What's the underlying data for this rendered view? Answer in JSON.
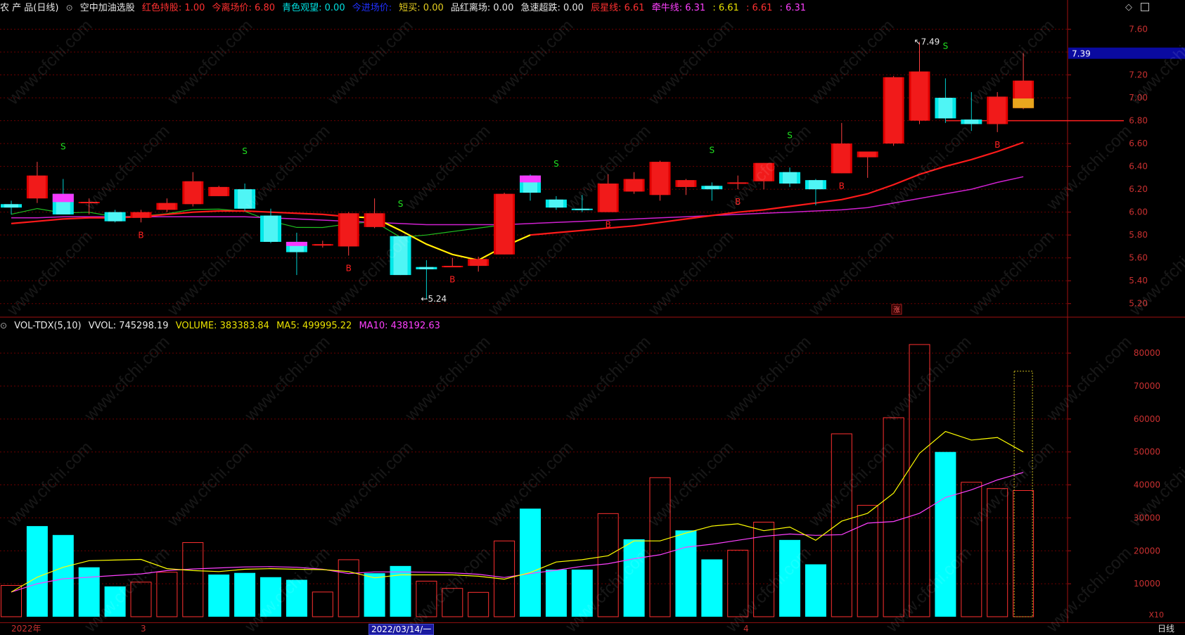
{
  "header": {
    "stock_name": "农 产 品(日线)",
    "formula": "空中加油选股",
    "items": [
      {
        "text": "红色持股: 1.00",
        "color": "#ff3030"
      },
      {
        "text": "今离场价: 6.80",
        "color": "#ff3030"
      },
      {
        "text": "青色观望: 0.00",
        "color": "#00e0e0"
      },
      {
        "text": "今进场价:",
        "color": "#2030ff"
      },
      {
        "text": "短买: 0.00",
        "color": "#e8d020"
      },
      {
        "text": "品红离场: 0.00",
        "color": "#e8e8e8"
      },
      {
        "text": "急速超跌: 0.00",
        "color": "#e8e8e8"
      },
      {
        "text": "辰星线: 6.61",
        "color": "#ff3030"
      },
      {
        "text": "牵牛线: 6.31",
        "color": "#ff40ff"
      },
      {
        "text": ": 6.61",
        "color": "#e8e000"
      },
      {
        "text": ": 6.61",
        "color": "#ff3030"
      },
      {
        "text": ": 6.31",
        "color": "#ff40ff"
      }
    ],
    "toggle_icon": "circle-chevron-icon",
    "diamond_icon": "diamond-icon",
    "window_icon": "window-restore-icon"
  },
  "volume_header": {
    "name": "VOL-TDX(5,10)",
    "vvol": "VVOL: 745298.19",
    "volume": "VOLUME: 383383.84",
    "ma5": "MA5: 499995.22",
    "ma10": "MA10: 438192.63",
    "colors": {
      "name": "#e8e8e8",
      "volume": "#e8e000",
      "ma5": "#e8e000",
      "ma10": "#ff40ff"
    }
  },
  "price_axis": {
    "ticks": [
      "7.60",
      "7.40",
      "7.20",
      "7.00",
      "6.80",
      "6.60",
      "6.40",
      "6.20",
      "6.00",
      "5.80",
      "5.60",
      "5.40",
      "5.20"
    ],
    "current_price": "7.39",
    "high_marker": "7.49",
    "low_marker": "5.24",
    "rise_badge": "涨"
  },
  "volume_axis": {
    "ticks": [
      "80000",
      "70000",
      "60000",
      "50000",
      "40000",
      "30000",
      "20000",
      "10000"
    ],
    "unit": "X10"
  },
  "time_axis": {
    "labels": [
      "2022年",
      "3",
      "4"
    ],
    "cursor_date": "2022/03/14/一",
    "period": "日线"
  },
  "signals": {
    "buy": "B",
    "sell": "S"
  },
  "watermark": "www.cfchi.com",
  "colors": {
    "up": "#e00000",
    "down": "#00e8e8",
    "ma_red": "#ff1a1a",
    "ma_magenta": "#d020d0",
    "ma_green": "#20c020",
    "ma_yellow": "#ffff00",
    "grid": "#6a0000",
    "border": "#a01010",
    "sell_signal": "#20e020",
    "buy_signal": "#ff2020"
  },
  "chart_data": {
    "type": "candlestick",
    "candles": [
      {
        "o": 6.07,
        "h": 6.1,
        "l": 5.98,
        "c": 6.04
      },
      {
        "o": 6.12,
        "h": 6.44,
        "l": 6.08,
        "c": 6.32
      },
      {
        "o": 6.16,
        "h": 6.29,
        "l": 5.98,
        "c": 5.98
      },
      {
        "o": 6.09,
        "h": 6.12,
        "l": 5.98,
        "c": 6.09
      },
      {
        "o": 6.0,
        "h": 6.02,
        "l": 5.91,
        "c": 5.92
      },
      {
        "o": 5.95,
        "h": 6.02,
        "l": 5.91,
        "c": 6.0
      },
      {
        "o": 6.02,
        "h": 6.12,
        "l": 6.0,
        "c": 6.08
      },
      {
        "o": 6.07,
        "h": 6.35,
        "l": 6.05,
        "c": 6.27
      },
      {
        "o": 6.14,
        "h": 6.23,
        "l": 6.14,
        "c": 6.22
      },
      {
        "o": 6.2,
        "h": 6.25,
        "l": 6.01,
        "c": 6.03
      },
      {
        "o": 5.97,
        "h": 6.03,
        "l": 5.73,
        "c": 5.74
      },
      {
        "o": 5.74,
        "h": 5.82,
        "l": 5.45,
        "c": 5.65
      },
      {
        "o": 5.71,
        "h": 5.75,
        "l": 5.69,
        "c": 5.72
      },
      {
        "o": 5.7,
        "h": 6.0,
        "l": 5.62,
        "c": 5.99
      },
      {
        "o": 5.87,
        "h": 6.12,
        "l": 5.86,
        "c": 5.99
      },
      {
        "o": 5.79,
        "h": 5.79,
        "l": 5.45,
        "c": 5.45
      },
      {
        "o": 5.52,
        "h": 5.58,
        "l": 5.24,
        "c": 5.5
      },
      {
        "o": 5.53,
        "h": 5.6,
        "l": 5.52,
        "c": 5.53
      },
      {
        "o": 5.53,
        "h": 5.61,
        "l": 5.48,
        "c": 5.59
      },
      {
        "o": 5.63,
        "h": 6.17,
        "l": 5.63,
        "c": 6.16
      },
      {
        "o": 6.32,
        "h": 6.33,
        "l": 6.1,
        "c": 6.17
      },
      {
        "o": 6.11,
        "h": 6.14,
        "l": 6.02,
        "c": 6.04
      },
      {
        "o": 6.03,
        "h": 6.15,
        "l": 6.0,
        "c": 6.02
      },
      {
        "o": 6.0,
        "h": 6.33,
        "l": 6.0,
        "c": 6.25
      },
      {
        "o": 6.18,
        "h": 6.35,
        "l": 6.16,
        "c": 6.29
      },
      {
        "o": 6.15,
        "h": 6.45,
        "l": 6.1,
        "c": 6.44
      },
      {
        "o": 6.22,
        "h": 6.29,
        "l": 6.15,
        "c": 6.28
      },
      {
        "o": 6.23,
        "h": 6.26,
        "l": 6.1,
        "c": 6.2
      },
      {
        "o": 6.26,
        "h": 6.32,
        "l": 6.2,
        "c": 6.26
      },
      {
        "o": 6.27,
        "h": 6.43,
        "l": 6.2,
        "c": 6.43
      },
      {
        "o": 6.35,
        "h": 6.39,
        "l": 6.22,
        "c": 6.25
      },
      {
        "o": 6.28,
        "h": 6.29,
        "l": 6.06,
        "c": 6.2
      },
      {
        "o": 6.34,
        "h": 6.78,
        "l": 6.34,
        "c": 6.6
      },
      {
        "o": 6.48,
        "h": 6.53,
        "l": 6.3,
        "c": 6.53
      },
      {
        "o": 6.6,
        "h": 7.19,
        "l": 6.58,
        "c": 7.18
      },
      {
        "o": 6.8,
        "h": 7.49,
        "l": 6.77,
        "c": 7.23
      },
      {
        "o": 7.0,
        "h": 7.17,
        "l": 6.78,
        "c": 6.82
      },
      {
        "o": 6.81,
        "h": 7.05,
        "l": 6.71,
        "c": 6.77
      },
      {
        "o": 6.77,
        "h": 7.05,
        "l": 6.7,
        "c": 7.01
      },
      {
        "o": 6.91,
        "h": 7.39,
        "l": 6.9,
        "c": 7.15
      }
    ],
    "ma_red": [
      5.9,
      5.92,
      5.94,
      5.95,
      5.95,
      5.96,
      5.98,
      6.0,
      6.01,
      6.01,
      6.0,
      5.99,
      5.98,
      5.96,
      5.95,
      5.84,
      5.72,
      5.63,
      5.58,
      5.7,
      5.8,
      5.82,
      5.84,
      5.86,
      5.88,
      5.91,
      5.94,
      5.97,
      6.0,
      6.02,
      6.05,
      6.08,
      6.11,
      6.16,
      6.24,
      6.33,
      6.4,
      6.46,
      6.53,
      6.61
    ],
    "ma_magenta": [
      5.95,
      5.95,
      5.96,
      5.96,
      5.96,
      5.96,
      5.96,
      5.96,
      5.96,
      5.96,
      5.95,
      5.94,
      5.93,
      5.92,
      5.91,
      5.9,
      5.89,
      5.89,
      5.89,
      5.89,
      5.9,
      5.91,
      5.92,
      5.93,
      5.94,
      5.95,
      5.96,
      5.97,
      5.98,
      5.99,
      6.0,
      6.01,
      6.02,
      6.04,
      6.08,
      6.12,
      6.16,
      6.2,
      6.26,
      6.31
    ],
    "sell_signals": [
      2,
      9,
      15,
      21,
      27,
      30,
      36
    ],
    "buy_signals": [
      5,
      13,
      17,
      23,
      28,
      32,
      38
    ],
    "volume": [
      9.5,
      27.5,
      24.8,
      15.0,
      9.2,
      10.5,
      13.5,
      22.5,
      12.8,
      13.3,
      12.0,
      11.2,
      7.5,
      17.3,
      13.2,
      15.4,
      10.8,
      8.6,
      7.4,
      23.0,
      32.8,
      14.3,
      14.3,
      31.3,
      23.5,
      42.2,
      26.2,
      17.4,
      20.2,
      28.7,
      23.3,
      15.9,
      55.5,
      33.8,
      60.4,
      82.6,
      50.0,
      40.8,
      38.9,
      38.3
    ],
    "vol_up": [
      true,
      false,
      false,
      false,
      false,
      true,
      true,
      true,
      false,
      false,
      false,
      false,
      true,
      true,
      false,
      false,
      true,
      true,
      true,
      true,
      false,
      false,
      false,
      true,
      false,
      true,
      false,
      false,
      true,
      true,
      false,
      false,
      true,
      true,
      true,
      true,
      false,
      true,
      true,
      true
    ],
    "vol_ma5": [
      7.5,
      12.0,
      15.0,
      17.0,
      17.2,
      17.4,
      14.6,
      14.0,
      13.7,
      14.4,
      14.6,
      14.4,
      14.3,
      13.7,
      11.8,
      12.7,
      12.7,
      12.7,
      12.3,
      11.4,
      13.4,
      16.6,
      17.3,
      18.5,
      23.0,
      23.0,
      25.4,
      27.5,
      28.2,
      26.1,
      27.2,
      23.2,
      29.0,
      31.4,
      37.5,
      49.6,
      56.2,
      53.6,
      54.4,
      50.0
    ],
    "vol_ma10": [
      7.5,
      10.0,
      11.5,
      12.0,
      12.5,
      13.0,
      14.0,
      14.5,
      14.8,
      15.1,
      15.2,
      15.0,
      14.4,
      13.1,
      13.6,
      13.6,
      13.5,
      13.3,
      12.9,
      11.9,
      13.1,
      14.1,
      15.3,
      16.1,
      17.6,
      18.8,
      21.1,
      22.0,
      23.2,
      24.4,
      25.1,
      24.7,
      24.9,
      28.4,
      28.9,
      31.4,
      36.2,
      38.5,
      41.5,
      43.8
    ],
    "price_range": [
      5.1,
      7.72
    ],
    "volume_range_x10k": [
      0,
      86
    ]
  }
}
